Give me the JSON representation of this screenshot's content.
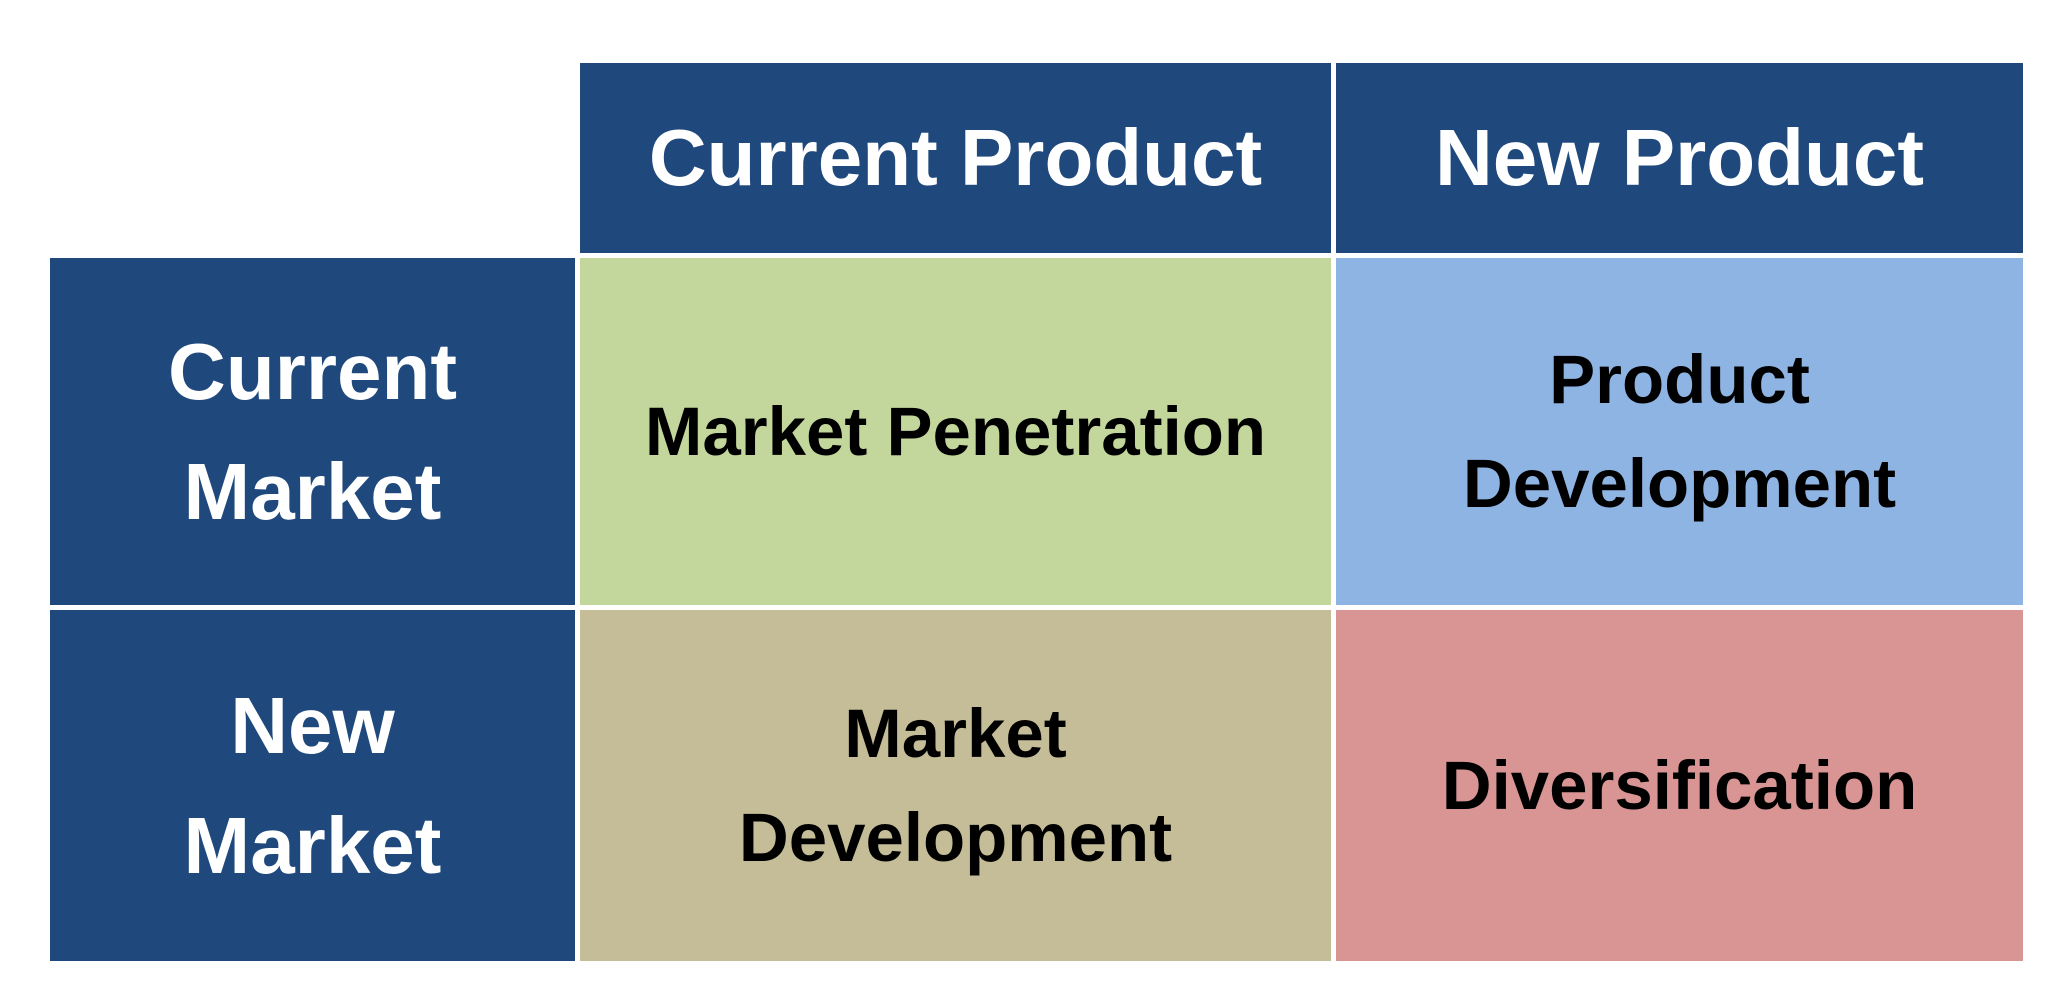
{
  "columns": {
    "current_product": "Current Product",
    "new_product": "New Product"
  },
  "rows": {
    "current_market": [
      "Current",
      "Market"
    ],
    "new_market": [
      "New",
      "Market"
    ]
  },
  "quadrants": {
    "market_penetration": [
      "Market Penetration"
    ],
    "product_development": [
      "Product",
      "Development"
    ],
    "market_development": [
      "Market",
      "Development"
    ],
    "diversification": [
      "Diversification"
    ]
  },
  "colors": {
    "header_bg": "#1f497d",
    "header_text": "#ffffff",
    "market_penetration": "#c3d69b",
    "product_development": "#8eb4e3",
    "market_development": "#c4bd97",
    "diversification": "#d99594",
    "quadrant_text": "#000000"
  }
}
